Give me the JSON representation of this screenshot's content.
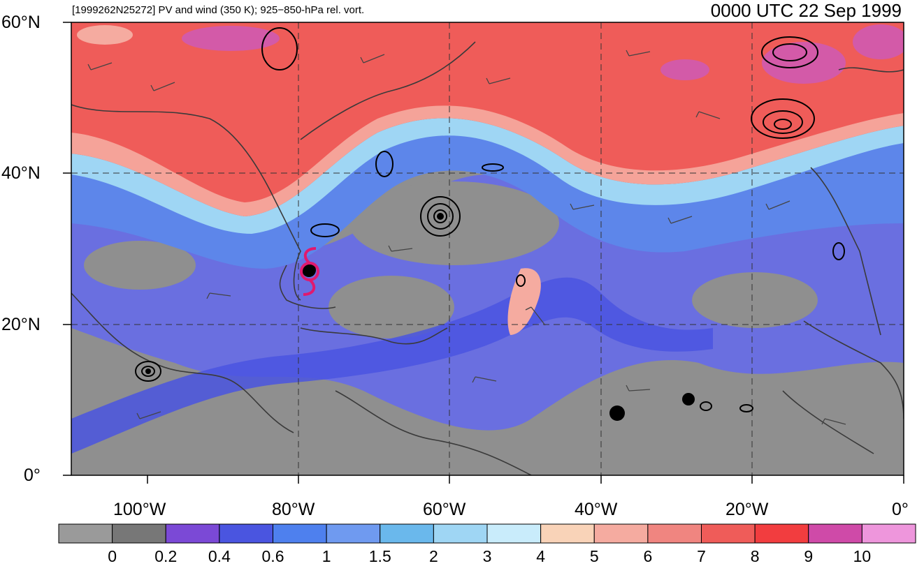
{
  "header": {
    "left_title": "[1999262N25272] PV and wind (350 K); 925−850-hPa rel. vort.",
    "right_title": "0000 UTC 22 Sep 1999"
  },
  "axes": {
    "lat_labels": [
      "60°N",
      "40°N",
      "20°N",
      "0°"
    ],
    "lon_labels": [
      "100°W",
      "80°W",
      "60°W",
      "40°W",
      "20°W",
      "0°"
    ]
  },
  "colorbar": {
    "labels": [
      "0",
      "0.2",
      "0.4",
      "0.6",
      "1",
      "1.5",
      "2",
      "3",
      "4",
      "5",
      "6",
      "7",
      "8",
      "9",
      "10"
    ],
    "colors": [
      "#9a9a9a",
      "#777777",
      "#7b49d6",
      "#4a55e0",
      "#4e80ee",
      "#6f9af0",
      "#6ab8ec",
      "#9fd6f4",
      "#c9ecfb",
      "#f9d3b8",
      "#f5aba0",
      "#f08580",
      "#ef5c59",
      "#f23d3f",
      "#cf4aa8",
      "#ee96dc"
    ]
  },
  "map_colors": {
    "low_pv": "#8f8f8f",
    "mid_pv": "#6a6fe0",
    "blue_band": "#5d86ea",
    "light_blue": "#9fd6f4",
    "high_pv": "#ef5c59",
    "very_high_pv": "#d35aa8",
    "coast": "#3a3a3a",
    "storm_symbol": "#e0196e"
  }
}
